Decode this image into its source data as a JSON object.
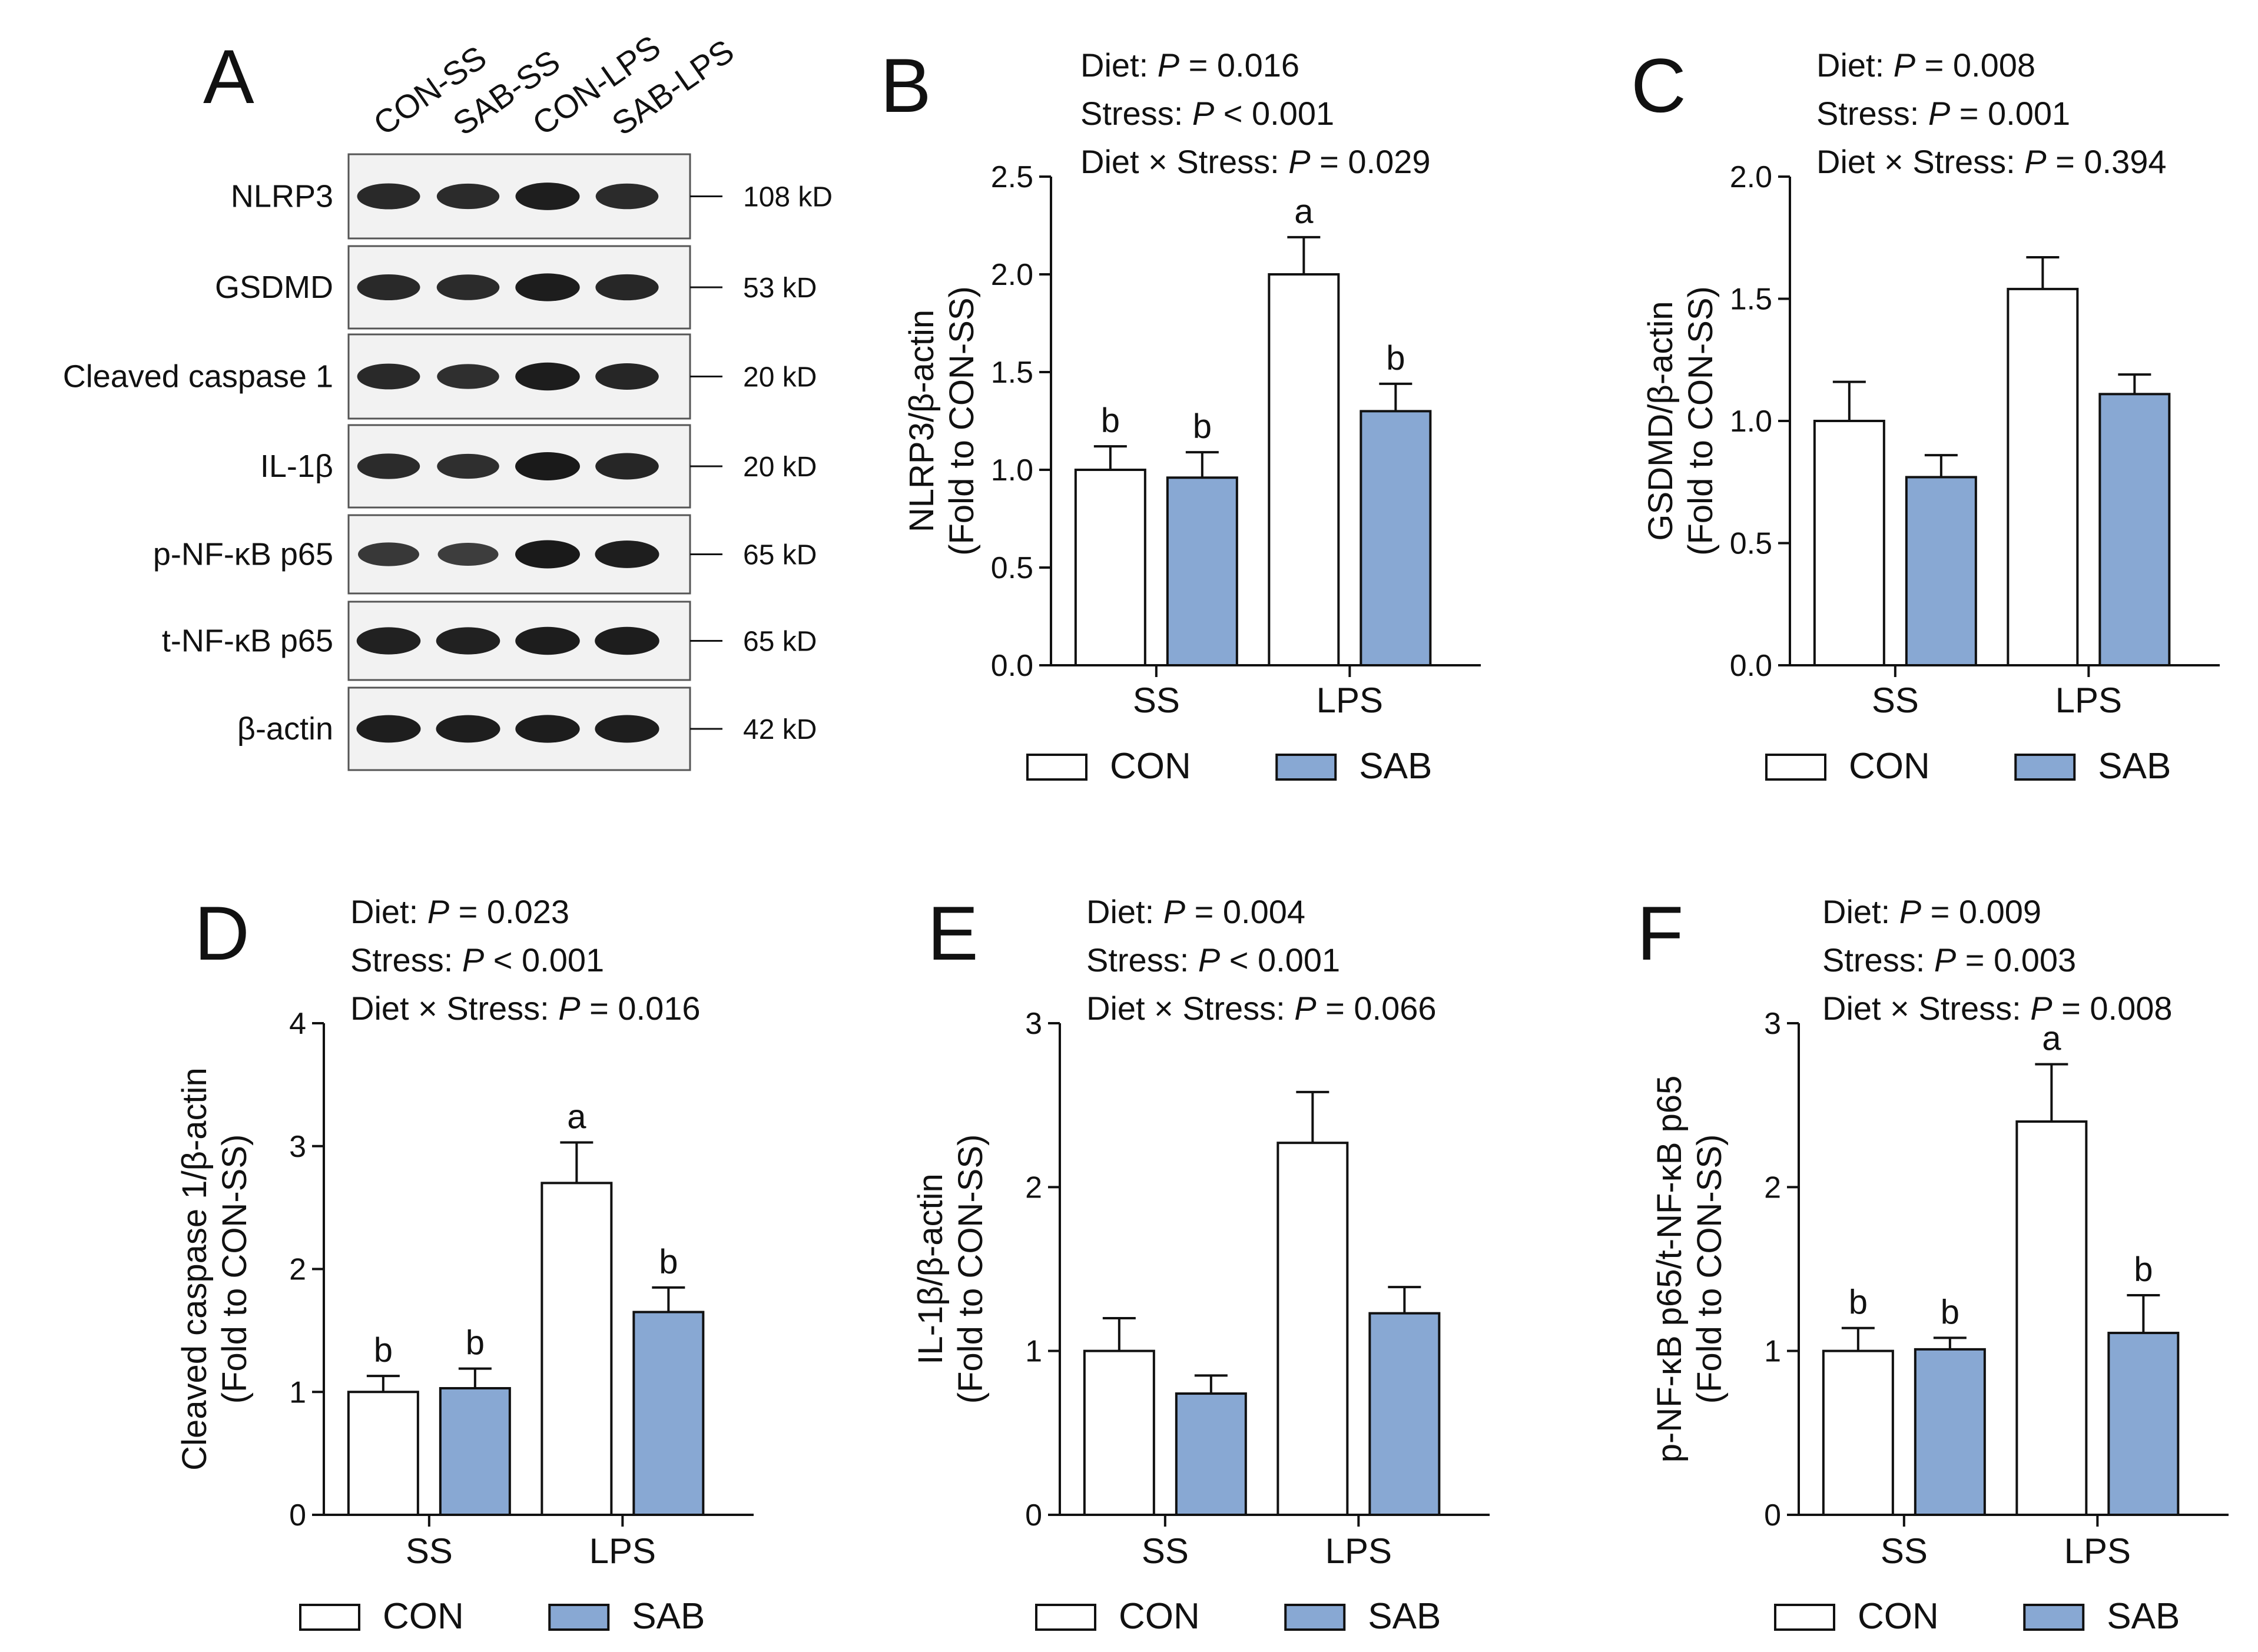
{
  "colors": {
    "con": "#ffffff",
    "sab": "#88a8d3",
    "stroke": "#111111",
    "band": "#1a1a1a"
  },
  "blot": {
    "letter": "A",
    "lanes": [
      "CON-SS",
      "SAB-SS",
      "CON-LPS",
      "SAB-LPS"
    ],
    "rows": [
      {
        "label": "NLRP3",
        "size": "108 kD",
        "intensity": [
          0.85,
          0.82,
          0.95,
          0.83
        ]
      },
      {
        "label": "GSDMD",
        "size": "53 kD",
        "intensity": [
          0.85,
          0.83,
          0.97,
          0.86
        ]
      },
      {
        "label": "Cleaved caspase 1",
        "size": "20 kD",
        "intensity": [
          0.84,
          0.78,
          0.98,
          0.88
        ]
      },
      {
        "label": "IL-1β",
        "size": "20 kD",
        "intensity": [
          0.82,
          0.78,
          1.0,
          0.88
        ]
      },
      {
        "label": "p-NF-κB p65",
        "size": "65 kD",
        "intensity": [
          0.7,
          0.65,
          1.0,
          0.95
        ]
      },
      {
        "label": "t-NF-κB p65",
        "size": "65 kD",
        "intensity": [
          0.93,
          0.93,
          0.98,
          0.98
        ]
      },
      {
        "label": "β-actin",
        "size": "42 kD",
        "intensity": [
          0.95,
          0.95,
          0.97,
          0.96
        ]
      }
    ]
  },
  "chart_data": [
    {
      "id": "B",
      "type": "bar",
      "stats": [
        {
          "prefix": "Diet: ",
          "p": "P",
          "rest": " = 0.016"
        },
        {
          "prefix": "Stress: ",
          "p": "P",
          "rest": " < 0.001"
        },
        {
          "prefix": "Diet × Stress: ",
          "p": "P",
          "rest": " = 0.029"
        }
      ],
      "ylabel": [
        "NLRP3/β-actin",
        "(Fold to CON-SS)"
      ],
      "ylim": [
        0,
        2.5
      ],
      "yticks": [
        "0.0",
        "0.5",
        "1.0",
        "1.5",
        "2.0",
        "2.5"
      ],
      "categories": [
        "SS",
        "LPS"
      ],
      "series": [
        {
          "name": "CON",
          "values": [
            1.0,
            2.0
          ],
          "errors": [
            0.12,
            0.19
          ],
          "labels": [
            "b",
            "a"
          ]
        },
        {
          "name": "SAB",
          "values": [
            0.96,
            1.3
          ],
          "errors": [
            0.13,
            0.14
          ],
          "labels": [
            "b",
            "b"
          ]
        }
      ]
    },
    {
      "id": "C",
      "type": "bar",
      "stats": [
        {
          "prefix": "Diet: ",
          "p": "P",
          "rest": " = 0.008"
        },
        {
          "prefix": "Stress: ",
          "p": "P",
          "rest": " = 0.001"
        },
        {
          "prefix": "Diet × Stress: ",
          "p": "P",
          "rest": " = 0.394"
        }
      ],
      "ylabel": [
        "GSDMD/β-actin",
        "(Fold to CON-SS)"
      ],
      "ylim": [
        0,
        2.0
      ],
      "yticks": [
        "0.0",
        "0.5",
        "1.0",
        "1.5",
        "2.0"
      ],
      "categories": [
        "SS",
        "LPS"
      ],
      "series": [
        {
          "name": "CON",
          "values": [
            1.0,
            1.54
          ],
          "errors": [
            0.16,
            0.13
          ],
          "labels": [
            "",
            ""
          ]
        },
        {
          "name": "SAB",
          "values": [
            0.77,
            1.11
          ],
          "errors": [
            0.09,
            0.08
          ],
          "labels": [
            "",
            ""
          ]
        }
      ]
    },
    {
      "id": "D",
      "type": "bar",
      "stats": [
        {
          "prefix": "Diet: ",
          "p": "P",
          "rest": " = 0.023"
        },
        {
          "prefix": "Stress: ",
          "p": "P",
          "rest": " < 0.001"
        },
        {
          "prefix": "Diet × Stress: ",
          "p": "P",
          "rest": " = 0.016"
        }
      ],
      "ylabel": [
        "Cleaved caspase 1/β-actin",
        "(Fold to CON-SS)"
      ],
      "ylim": [
        0,
        4
      ],
      "yticks": [
        "0",
        "1",
        "2",
        "3",
        "4"
      ],
      "categories": [
        "SS",
        "LPS"
      ],
      "series": [
        {
          "name": "CON",
          "values": [
            1.0,
            2.7
          ],
          "errors": [
            0.13,
            0.33
          ],
          "labels": [
            "b",
            "a"
          ]
        },
        {
          "name": "SAB",
          "values": [
            1.03,
            1.65
          ],
          "errors": [
            0.16,
            0.2
          ],
          "labels": [
            "b",
            "b"
          ]
        }
      ]
    },
    {
      "id": "E",
      "type": "bar",
      "stats": [
        {
          "prefix": "Diet: ",
          "p": "P",
          "rest": " = 0.004"
        },
        {
          "prefix": "Stress: ",
          "p": "P",
          "rest": " < 0.001"
        },
        {
          "prefix": "Diet × Stress: ",
          "p": "P",
          "rest": " = 0.066"
        }
      ],
      "ylabel": [
        "IL-1β/β-actin",
        "(Fold to CON-SS)"
      ],
      "ylim": [
        0,
        3
      ],
      "yticks": [
        "0",
        "1",
        "2",
        "3"
      ],
      "categories": [
        "SS",
        "LPS"
      ],
      "series": [
        {
          "name": "CON",
          "values": [
            1.0,
            2.27
          ],
          "errors": [
            0.2,
            0.31
          ],
          "labels": [
            "",
            ""
          ]
        },
        {
          "name": "SAB",
          "values": [
            0.74,
            1.23
          ],
          "errors": [
            0.11,
            0.16
          ],
          "labels": [
            "",
            ""
          ]
        }
      ]
    },
    {
      "id": "F",
      "type": "bar",
      "stats": [
        {
          "prefix": "Diet: ",
          "p": "P",
          "rest": " = 0.009"
        },
        {
          "prefix": "Stress: ",
          "p": "P",
          "rest": " = 0.003"
        },
        {
          "prefix": "Diet × Stress: ",
          "p": "P",
          "rest": " = 0.008"
        }
      ],
      "ylabel": [
        "p-NF-κB p65/t-NF-κB p65",
        "(Fold to CON-SS)"
      ],
      "ylim": [
        0,
        3
      ],
      "yticks": [
        "0",
        "1",
        "2",
        "3"
      ],
      "categories": [
        "SS",
        "LPS"
      ],
      "series": [
        {
          "name": "CON",
          "values": [
            1.0,
            2.4
          ],
          "errors": [
            0.14,
            0.35
          ],
          "labels": [
            "b",
            "a"
          ]
        },
        {
          "name": "SAB",
          "values": [
            1.01,
            1.11
          ],
          "errors": [
            0.07,
            0.23
          ],
          "labels": [
            "b",
            "b"
          ]
        }
      ]
    }
  ]
}
